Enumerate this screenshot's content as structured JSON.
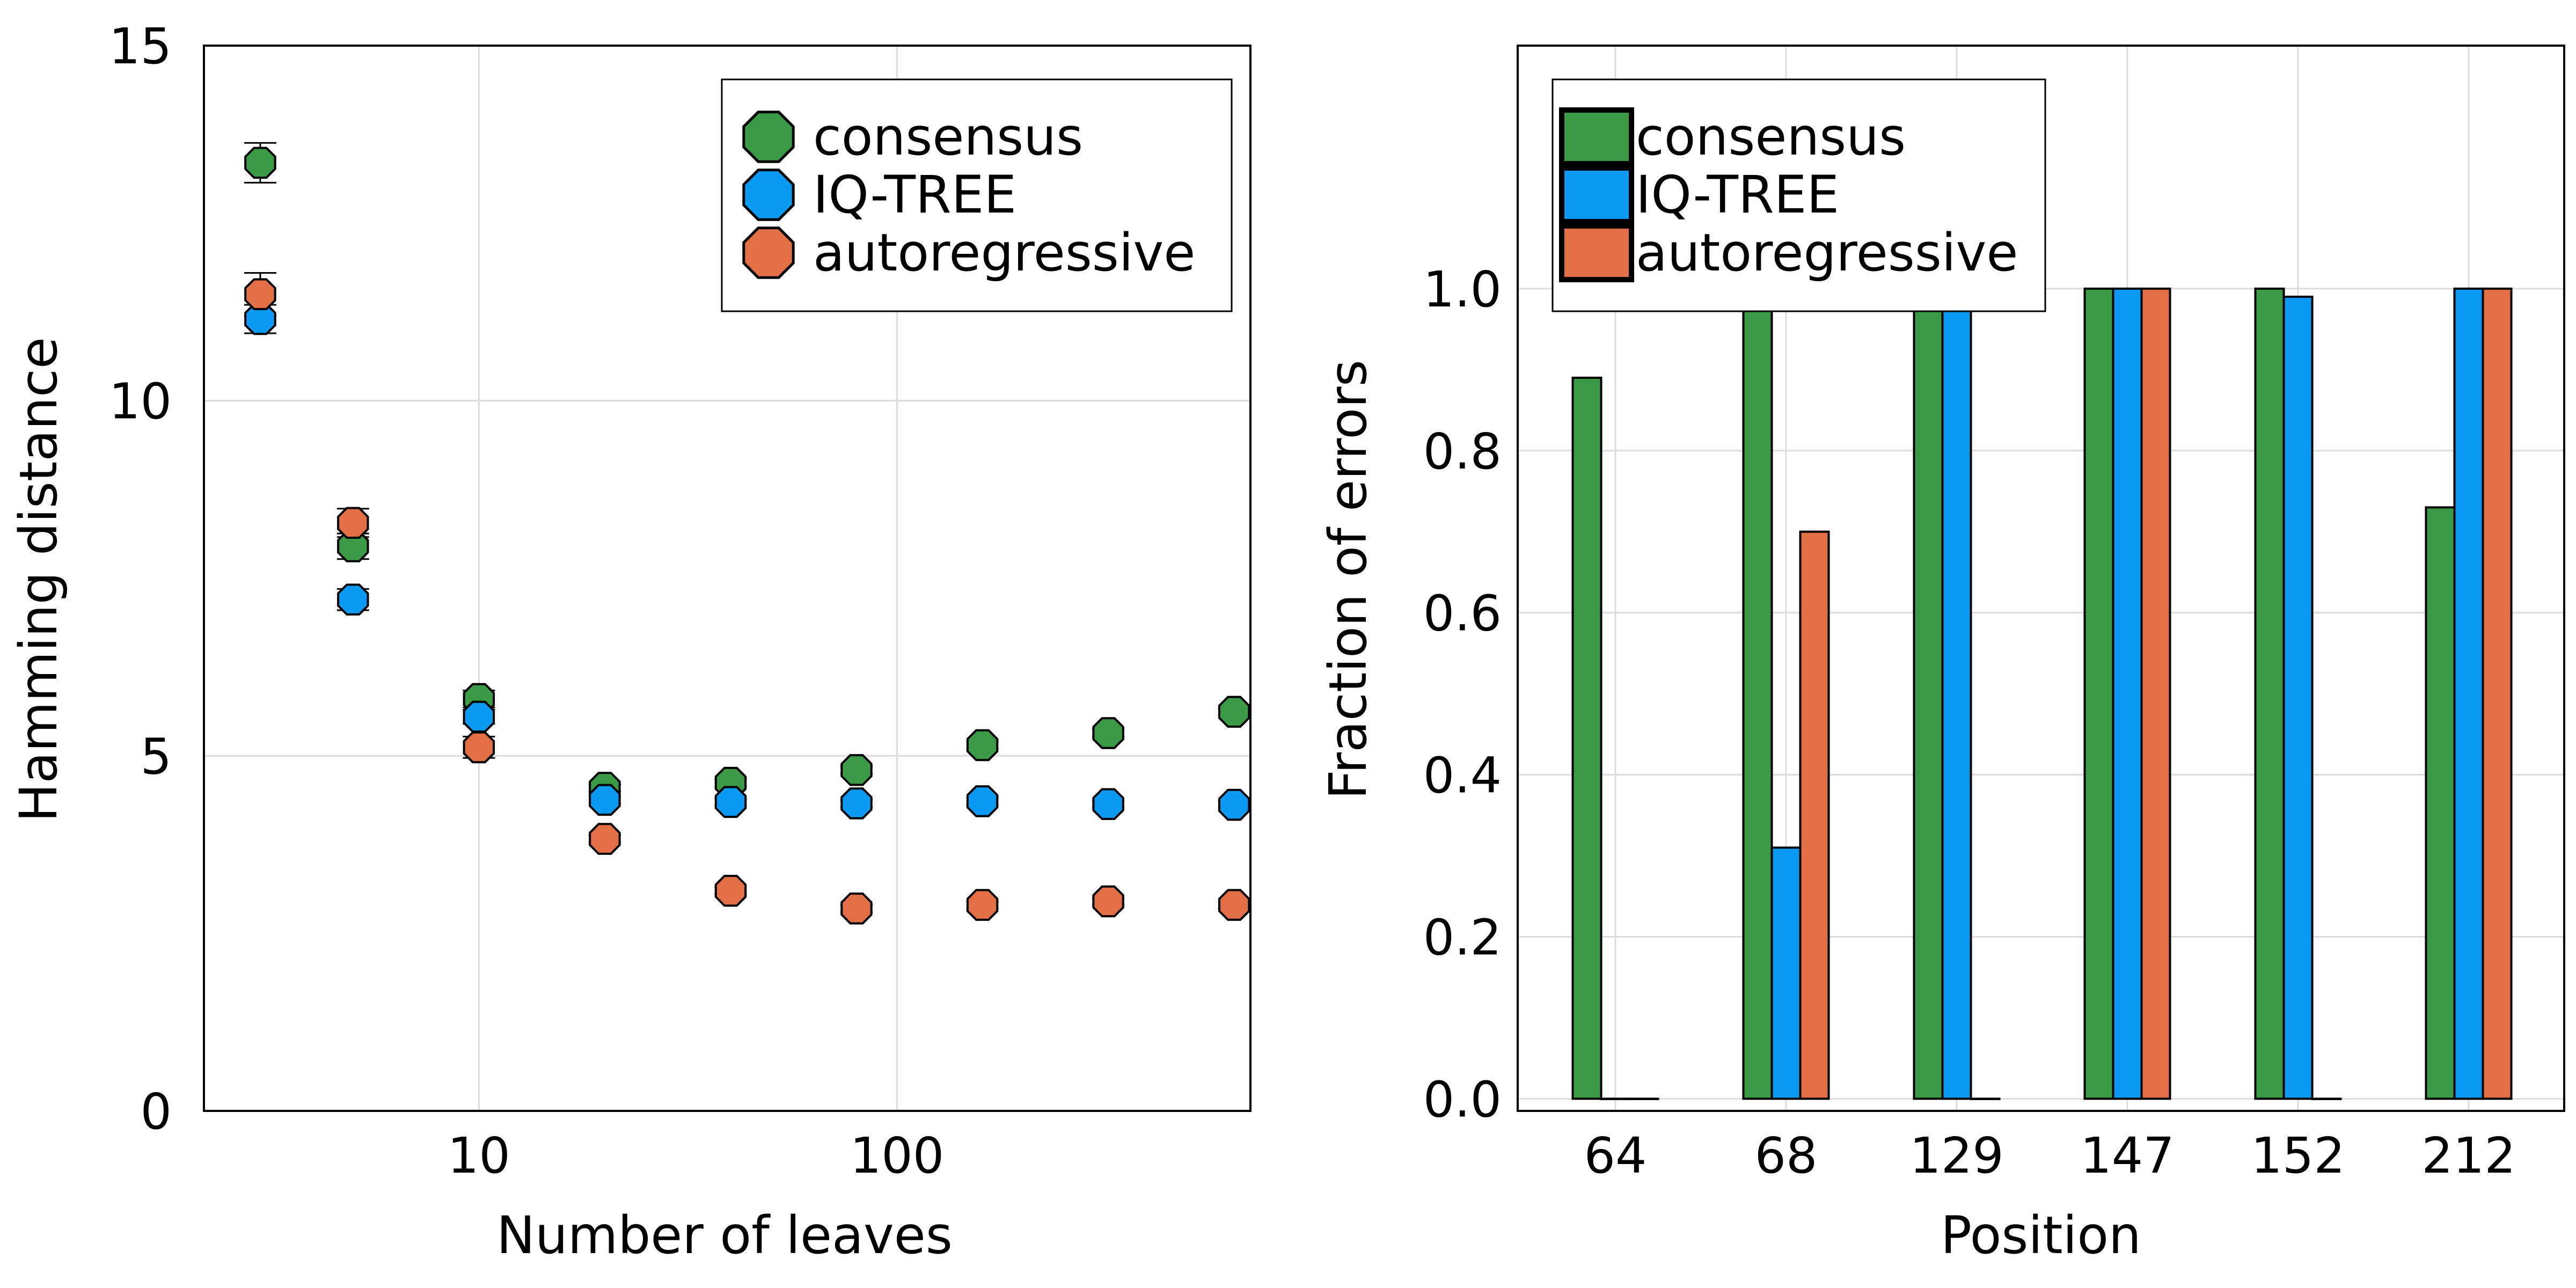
{
  "colors": {
    "consensus": "#3a9a45",
    "iqtree": "#0a9af3",
    "autoregressive": "#e26f46",
    "grid": "#dcdcdc",
    "frame": "#000000"
  },
  "chart_data": [
    {
      "type": "scatter",
      "xlabel": "Number of leaves",
      "ylabel": "Hamming distance",
      "x_scale": "log",
      "xlim": [
        2.2,
        700
      ],
      "ylim": [
        0,
        15
      ],
      "x_ticks": [
        10,
        100
      ],
      "x_tick_labels": [
        "10",
        "100"
      ],
      "y_ticks": [
        0,
        5,
        10,
        15
      ],
      "y_tick_labels": [
        "0",
        "5",
        "10",
        "15"
      ],
      "grid": true,
      "legend": "top-right",
      "x": [
        3,
        5,
        10,
        20,
        40,
        80,
        160,
        320,
        640
      ],
      "series": [
        {
          "name": "consensus",
          "color_key": "consensus",
          "y": [
            13.35,
            7.95,
            5.8,
            4.55,
            4.62,
            4.8,
            5.15,
            5.32,
            5.62
          ],
          "err": [
            0.28,
            0.18,
            0.12,
            0.05,
            0.05,
            0.05,
            0.05,
            0.05,
            0.05
          ]
        },
        {
          "name": "IQ-TREE",
          "color_key": "iqtree",
          "y": [
            11.15,
            7.2,
            5.55,
            4.38,
            4.35,
            4.33,
            4.36,
            4.32,
            4.31
          ],
          "err": [
            0.2,
            0.15,
            0.1,
            0.05,
            0.05,
            0.05,
            0.05,
            0.05,
            0.05
          ]
        },
        {
          "name": "autoregressive",
          "color_key": "autoregressive",
          "y": [
            11.5,
            8.28,
            5.12,
            3.83,
            3.1,
            2.85,
            2.9,
            2.95,
            2.9
          ],
          "err": [
            0.3,
            0.2,
            0.15,
            0.05,
            0.05,
            0.05,
            0.05,
            0.05,
            0.05
          ]
        }
      ]
    },
    {
      "type": "bar",
      "xlabel": "Position",
      "ylabel": "Fraction of errors",
      "categories": [
        "64",
        "68",
        "129",
        "147",
        "152",
        "212"
      ],
      "ylim": [
        -0.015,
        1.3
      ],
      "y_ticks": [
        0.0,
        0.2,
        0.4,
        0.6,
        0.8,
        1.0
      ],
      "y_tick_labels": [
        "0.0",
        "0.2",
        "0.4",
        "0.6",
        "0.8",
        "1.0"
      ],
      "grid": true,
      "legend": "top-left",
      "series": [
        {
          "name": "consensus",
          "color_key": "consensus",
          "values": [
            0.89,
            1.0,
            1.0,
            1.0,
            1.0,
            0.73
          ]
        },
        {
          "name": "IQ-TREE",
          "color_key": "iqtree",
          "values": [
            0.0,
            0.31,
            1.0,
            1.0,
            0.99,
            1.0
          ]
        },
        {
          "name": "autoregressive",
          "color_key": "autoregressive",
          "values": [
            0.0,
            0.7,
            0.0,
            1.0,
            0.0,
            1.0
          ]
        }
      ]
    }
  ]
}
